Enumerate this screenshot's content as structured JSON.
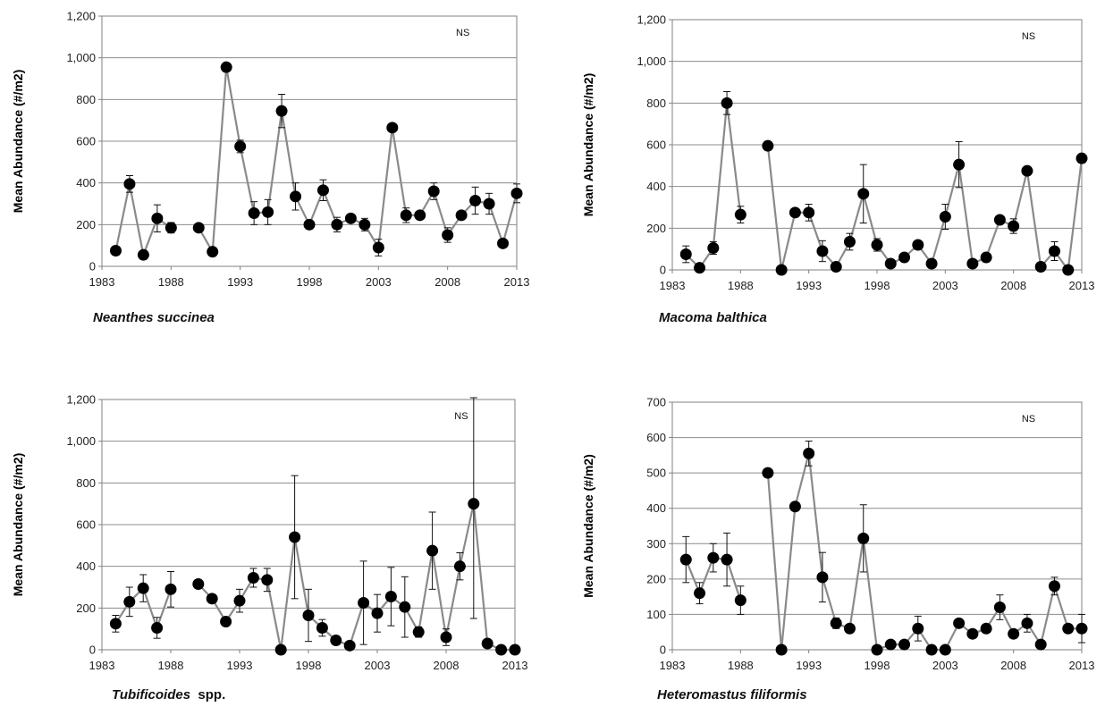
{
  "chart_data": [
    {
      "type": "line",
      "species": "Neanthes succinea",
      "ylabel": "Mean Abundance (#/m2)",
      "annotation": "NS",
      "xlim": [
        1983,
        2013
      ],
      "xticks": [
        "1983",
        "1988",
        "1993",
        "1998",
        "2003",
        "2008",
        "2013"
      ],
      "ylim": [
        0,
        1200
      ],
      "yticks": [
        "0",
        "200",
        "400",
        "600",
        "800",
        "1,000",
        "1,200"
      ],
      "grid": true,
      "segments": [
        [
          {
            "x": 1984,
            "y": 75,
            "err": 20
          },
          {
            "x": 1985,
            "y": 395,
            "err": 40
          },
          {
            "x": 1986,
            "y": 55,
            "err": 10
          },
          {
            "x": 1987,
            "y": 230,
            "err": 65
          },
          {
            "x": 1988,
            "y": 185,
            "err": 25
          }
        ],
        [
          {
            "x": 1990,
            "y": 185,
            "err": 15
          },
          {
            "x": 1991,
            "y": 70,
            "err": 10
          },
          {
            "x": 1992,
            "y": 955,
            "err": 15
          },
          {
            "x": 1993,
            "y": 575,
            "err": 30
          },
          {
            "x": 1994,
            "y": 255,
            "err": 55
          },
          {
            "x": 1995,
            "y": 260,
            "err": 60
          },
          {
            "x": 1996,
            "y": 745,
            "err": 80
          },
          {
            "x": 1997,
            "y": 335,
            "err": 65
          },
          {
            "x": 1998,
            "y": 200,
            "err": 15
          },
          {
            "x": 1999,
            "y": 365,
            "err": 50
          },
          {
            "x": 2000,
            "y": 200,
            "err": 35
          },
          {
            "x": 2001,
            "y": 230,
            "err": 20
          },
          {
            "x": 2002,
            "y": 200,
            "err": 30
          },
          {
            "x": 2003,
            "y": 90,
            "err": 40
          },
          {
            "x": 2004,
            "y": 665,
            "err": 10
          },
          {
            "x": 2005,
            "y": 245,
            "err": 35
          },
          {
            "x": 2006,
            "y": 245,
            "err": 15
          },
          {
            "x": 2007,
            "y": 360,
            "err": 40
          },
          {
            "x": 2008,
            "y": 150,
            "err": 35
          },
          {
            "x": 2009,
            "y": 245,
            "err": 15
          },
          {
            "x": 2010,
            "y": 315,
            "err": 65
          },
          {
            "x": 2011,
            "y": 300,
            "err": 50
          },
          {
            "x": 2012,
            "y": 110,
            "err": 10
          },
          {
            "x": 2013,
            "y": 350,
            "err": 45
          }
        ]
      ]
    },
    {
      "type": "line",
      "species": "Macoma balthica",
      "ylabel": "Mean Abundance (#/m2)",
      "annotation": "NS",
      "xlim": [
        1983,
        2013
      ],
      "xticks": [
        "1983",
        "1988",
        "1993",
        "1998",
        "2003",
        "2008",
        "2013"
      ],
      "ylim": [
        0,
        1200
      ],
      "yticks": [
        "0",
        "200",
        "400",
        "600",
        "800",
        "1,000",
        "1,200"
      ],
      "grid": true,
      "segments": [
        [
          {
            "x": 1984,
            "y": 75,
            "err": 40
          },
          {
            "x": 1985,
            "y": 10,
            "err": 5
          },
          {
            "x": 1986,
            "y": 105,
            "err": 30
          },
          {
            "x": 1987,
            "y": 800,
            "err": 55
          },
          {
            "x": 1988,
            "y": 265,
            "err": 40
          }
        ],
        [
          {
            "x": 1990,
            "y": 595,
            "err": 10
          },
          {
            "x": 1991,
            "y": 0,
            "err": 5
          },
          {
            "x": 1992,
            "y": 275,
            "err": 15
          },
          {
            "x": 1993,
            "y": 275,
            "err": 40
          },
          {
            "x": 1994,
            "y": 90,
            "err": 50
          },
          {
            "x": 1995,
            "y": 15,
            "err": 10
          },
          {
            "x": 1996,
            "y": 135,
            "err": 40
          },
          {
            "x": 1997,
            "y": 365,
            "err": 140
          },
          {
            "x": 1998,
            "y": 120,
            "err": 30
          },
          {
            "x": 1999,
            "y": 30,
            "err": 10
          },
          {
            "x": 2000,
            "y": 60,
            "err": 15
          },
          {
            "x": 2001,
            "y": 120,
            "err": 15
          },
          {
            "x": 2002,
            "y": 30,
            "err": 5
          },
          {
            "x": 2003,
            "y": 255,
            "err": 60
          },
          {
            "x": 2004,
            "y": 505,
            "err": 110
          },
          {
            "x": 2005,
            "y": 30,
            "err": 5
          },
          {
            "x": 2006,
            "y": 60,
            "err": 10
          },
          {
            "x": 2007,
            "y": 240,
            "err": 10
          },
          {
            "x": 2008,
            "y": 210,
            "err": 35
          },
          {
            "x": 2009,
            "y": 475,
            "err": 15
          },
          {
            "x": 2010,
            "y": 15,
            "err": 5
          },
          {
            "x": 2011,
            "y": 90,
            "err": 45
          },
          {
            "x": 2012,
            "y": 0,
            "err": 5
          },
          {
            "x": 2013,
            "y": 535,
            "err": 15
          }
        ]
      ]
    },
    {
      "type": "line",
      "species": "Tubificoides",
      "species_suffix": "spp.",
      "ylabel": "Mean Abundance (#/m2)",
      "annotation": "NS",
      "xlim": [
        1983,
        2013
      ],
      "xticks": [
        "1983",
        "1988",
        "1993",
        "1998",
        "2003",
        "2008",
        "2013"
      ],
      "ylim": [
        0,
        1200
      ],
      "yticks": [
        "0",
        "200",
        "400",
        "600",
        "800",
        "1,000",
        "1,200"
      ],
      "grid": true,
      "segments": [
        [
          {
            "x": 1984,
            "y": 125,
            "err": 40
          },
          {
            "x": 1985,
            "y": 230,
            "err": 70
          },
          {
            "x": 1986,
            "y": 295,
            "err": 65
          },
          {
            "x": 1987,
            "y": 105,
            "err": 50
          },
          {
            "x": 1988,
            "y": 290,
            "err": 85
          }
        ],
        [
          {
            "x": 1990,
            "y": 315,
            "err": 10
          },
          {
            "x": 1991,
            "y": 245,
            "err": 10
          },
          {
            "x": 1992,
            "y": 135,
            "err": 10
          },
          {
            "x": 1993,
            "y": 235,
            "err": 55
          },
          {
            "x": 1994,
            "y": 345,
            "err": 45
          },
          {
            "x": 1995,
            "y": 335,
            "err": 55
          },
          {
            "x": 1996,
            "y": 0,
            "err": 5
          },
          {
            "x": 1997,
            "y": 540,
            "err": 295
          },
          {
            "x": 1998,
            "y": 165,
            "err": 125
          },
          {
            "x": 1999,
            "y": 105,
            "err": 40
          },
          {
            "x": 2000,
            "y": 45,
            "err": 20
          },
          {
            "x": 2001,
            "y": 20,
            "err": 5
          },
          {
            "x": 2002,
            "y": 225,
            "err": 200
          },
          {
            "x": 2003,
            "y": 175,
            "err": 90
          },
          {
            "x": 2004,
            "y": 255,
            "err": 140
          },
          {
            "x": 2005,
            "y": 205,
            "err": 145
          },
          {
            "x": 2006,
            "y": 85,
            "err": 25
          },
          {
            "x": 2007,
            "y": 475,
            "err": 185
          },
          {
            "x": 2008,
            "y": 60,
            "err": 40
          },
          {
            "x": 2009,
            "y": 400,
            "err": 65
          },
          {
            "x": 2010,
            "y": 700,
            "err": 550
          },
          {
            "x": 2011,
            "y": 30,
            "err": 5
          },
          {
            "x": 2012,
            "y": 0,
            "err": 5
          },
          {
            "x": 2013,
            "y": 0,
            "err": 5
          }
        ]
      ]
    },
    {
      "type": "line",
      "species": "Heteromastus filiformis",
      "ylabel": "Mean Abundance (#/m2)",
      "annotation": "NS",
      "xlim": [
        1983,
        2013
      ],
      "xticks": [
        "1983",
        "1988",
        "1993",
        "1998",
        "2003",
        "2008",
        "2013"
      ],
      "ylim": [
        0,
        700
      ],
      "yticks": [
        "0",
        "100",
        "200",
        "300",
        "400",
        "500",
        "600",
        "700"
      ],
      "grid": true,
      "segments": [
        [
          {
            "x": 1984,
            "y": 255,
            "err": 65
          },
          {
            "x": 1985,
            "y": 160,
            "err": 30
          },
          {
            "x": 1986,
            "y": 260,
            "err": 40
          },
          {
            "x": 1987,
            "y": 255,
            "err": 75
          },
          {
            "x": 1988,
            "y": 140,
            "err": 40
          }
        ],
        [
          {
            "x": 1990,
            "y": 500,
            "err": 5
          },
          {
            "x": 1991,
            "y": 0,
            "err": 5
          },
          {
            "x": 1992,
            "y": 405,
            "err": 5
          },
          {
            "x": 1993,
            "y": 555,
            "err": 35
          },
          {
            "x": 1994,
            "y": 205,
            "err": 70
          },
          {
            "x": 1995,
            "y": 75,
            "err": 15
          },
          {
            "x": 1996,
            "y": 60,
            "err": 10
          },
          {
            "x": 1997,
            "y": 315,
            "err": 95
          },
          {
            "x": 1998,
            "y": 0,
            "err": 5
          },
          {
            "x": 1999,
            "y": 15,
            "err": 5
          },
          {
            "x": 2000,
            "y": 15,
            "err": 5
          },
          {
            "x": 2001,
            "y": 60,
            "err": 35
          },
          {
            "x": 2002,
            "y": 0,
            "err": 5
          },
          {
            "x": 2003,
            "y": 0,
            "err": 5
          },
          {
            "x": 2004,
            "y": 75,
            "err": 10
          },
          {
            "x": 2005,
            "y": 45,
            "err": 5
          },
          {
            "x": 2006,
            "y": 60,
            "err": 10
          },
          {
            "x": 2007,
            "y": 120,
            "err": 35
          },
          {
            "x": 2008,
            "y": 45,
            "err": 5
          },
          {
            "x": 2009,
            "y": 75,
            "err": 25
          },
          {
            "x": 2010,
            "y": 15,
            "err": 5
          },
          {
            "x": 2011,
            "y": 180,
            "err": 25
          },
          {
            "x": 2012,
            "y": 60,
            "err": 10
          },
          {
            "x": 2013,
            "y": 60,
            "err": 40
          }
        ]
      ]
    }
  ]
}
